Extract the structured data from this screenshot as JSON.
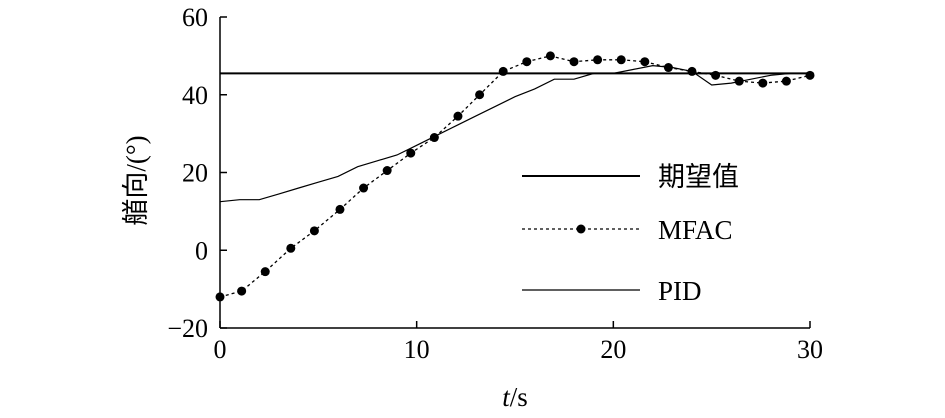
{
  "chart_data": {
    "type": "line",
    "xlabel_italic": "t",
    "xlabel_unit": "/s",
    "ylabel": "艏向/(°)",
    "xlim": [
      0,
      30
    ],
    "ylim": [
      -20,
      60
    ],
    "xticks": [
      "0",
      "10",
      "20",
      "30"
    ],
    "yticks": [
      "−20",
      "0",
      "20",
      "40",
      "60"
    ],
    "grid": false,
    "legend_position": "right",
    "series": [
      {
        "name": "期望值",
        "style": "solid-thick",
        "x": [
          0,
          30
        ],
        "y": [
          45.5,
          45.5
        ]
      },
      {
        "name": "MFAC",
        "style": "dotted-markers",
        "x": [
          0,
          1.1,
          2.3,
          3.6,
          4.8,
          6.1,
          7.3,
          8.5,
          9.7,
          10.9,
          12.1,
          13.2,
          14.4,
          15.6,
          16.8,
          18.0,
          19.2,
          20.4,
          21.6,
          22.8,
          24.0,
          25.2,
          26.4,
          27.6,
          28.8,
          30.0
        ],
        "y": [
          -12,
          -10.5,
          -5.5,
          0.5,
          5,
          10.5,
          16,
          20.5,
          25,
          29,
          34.5,
          40,
          46,
          48.5,
          50,
          48.5,
          49,
          49,
          48.5,
          47,
          46,
          45,
          43.5,
          43,
          43.5,
          45
        ]
      },
      {
        "name": "PID",
        "style": "solid-thin",
        "x": [
          0,
          1,
          2,
          3,
          4,
          5,
          6,
          7,
          8,
          9,
          10,
          11,
          12,
          13,
          14,
          15,
          16,
          17,
          18,
          19,
          20,
          21,
          22,
          23,
          24,
          25,
          26,
          27,
          28,
          29,
          30
        ],
        "y": [
          12.5,
          13,
          13,
          14.5,
          16,
          17.5,
          19,
          21.5,
          23,
          24.5,
          27,
          29.5,
          32,
          34.5,
          37,
          39.5,
          41.5,
          44,
          44,
          45.5,
          45.5,
          46.5,
          47.5,
          47,
          46,
          42.5,
          43,
          44,
          45,
          45.5,
          45.5
        ]
      }
    ]
  }
}
